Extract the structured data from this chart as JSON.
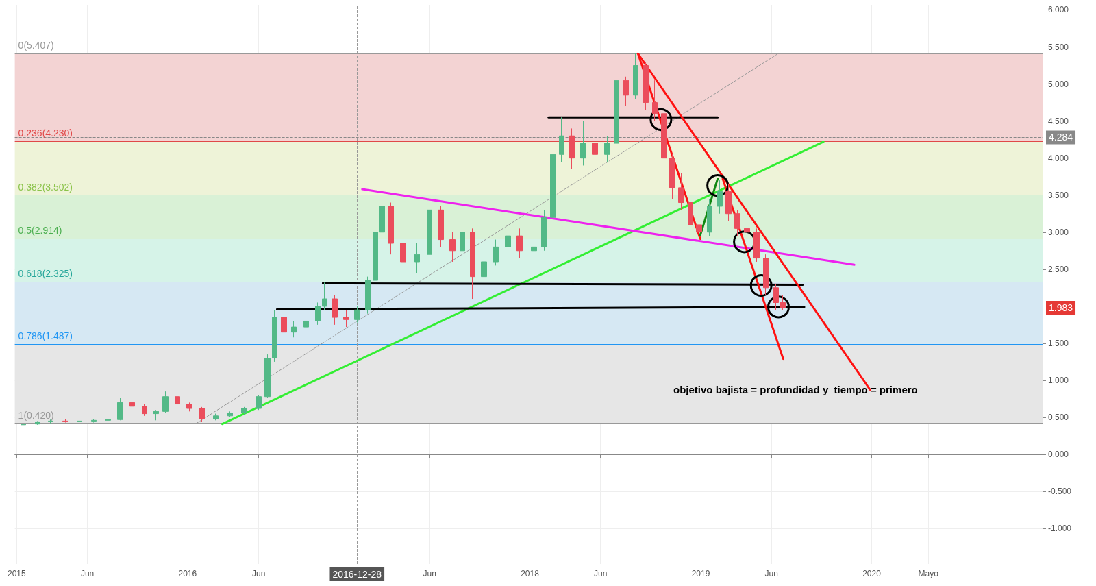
{
  "chart_data": {
    "type": "candlestick",
    "x": [
      "2015-01-15",
      "2015-02-15",
      "2015-03-15",
      "2015-04-15",
      "2015-05-15",
      "2015-06-15",
      "2015-07-15",
      "2015-08-10",
      "2015-09-05",
      "2015-10-01",
      "2015-10-25",
      "2015-11-15",
      "2015-12-10",
      "2016-01-05",
      "2016-02-01",
      "2016-03-01",
      "2016-04-01",
      "2016-05-01",
      "2016-06-01",
      "2016-06-20",
      "2016-07-05",
      "2016-07-25",
      "2016-08-15",
      "2016-09-10",
      "2016-10-05",
      "2016-10-20",
      "2016-11-10",
      "2016-12-05",
      "2016-12-28",
      "2017-01-20",
      "2017-02-05",
      "2017-02-20",
      "2017-03-10",
      "2017-04-05",
      "2017-05-05",
      "2017-06-01",
      "2017-06-25",
      "2017-07-20",
      "2017-08-10",
      "2017-09-01",
      "2017-09-25",
      "2017-10-20",
      "2017-11-15",
      "2017-12-10",
      "2018-01-10",
      "2018-02-01",
      "2018-02-20",
      "2018-03-10",
      "2018-04-01",
      "2018-04-25",
      "2018-05-20",
      "2018-06-15",
      "2018-07-05",
      "2018-07-25",
      "2018-08-15",
      "2018-09-05",
      "2018-09-25",
      "2018-10-15",
      "2018-11-01",
      "2018-11-20",
      "2018-12-10",
      "2018-12-28",
      "2019-01-20",
      "2019-02-10",
      "2019-03-01",
      "2019-03-20",
      "2019-04-10",
      "2019-04-30",
      "2019-05-20",
      "2019-06-10",
      "2019-06-25"
    ],
    "ohlc": [
      [
        0.4,
        0.43,
        0.38,
        0.41
      ],
      [
        0.41,
        0.45,
        0.4,
        0.44
      ],
      [
        0.44,
        0.47,
        0.42,
        0.45
      ],
      [
        0.45,
        0.48,
        0.43,
        0.44
      ],
      [
        0.44,
        0.47,
        0.42,
        0.45
      ],
      [
        0.45,
        0.48,
        0.43,
        0.46
      ],
      [
        0.46,
        0.5,
        0.44,
        0.47
      ],
      [
        0.47,
        0.76,
        0.46,
        0.7
      ],
      [
        0.7,
        0.74,
        0.6,
        0.65
      ],
      [
        0.65,
        0.68,
        0.52,
        0.55
      ],
      [
        0.55,
        0.6,
        0.46,
        0.58
      ],
      [
        0.58,
        0.85,
        0.56,
        0.78
      ],
      [
        0.78,
        0.8,
        0.66,
        0.68
      ],
      [
        0.68,
        0.7,
        0.58,
        0.62
      ],
      [
        0.62,
        0.64,
        0.44,
        0.48
      ],
      [
        0.48,
        0.55,
        0.46,
        0.52
      ],
      [
        0.52,
        0.58,
        0.5,
        0.56
      ],
      [
        0.56,
        0.64,
        0.54,
        0.62
      ],
      [
        0.62,
        0.8,
        0.6,
        0.78
      ],
      [
        0.78,
        1.35,
        0.76,
        1.3
      ],
      [
        1.3,
        1.95,
        1.25,
        1.85
      ],
      [
        1.85,
        1.9,
        1.55,
        1.65
      ],
      [
        1.65,
        1.8,
        1.58,
        1.72
      ],
      [
        1.72,
        1.85,
        1.65,
        1.8
      ],
      [
        1.8,
        2.05,
        1.75,
        2.0
      ],
      [
        2.0,
        2.32,
        1.95,
        2.1
      ],
      [
        2.1,
        2.15,
        1.75,
        1.85
      ],
      [
        1.85,
        1.95,
        1.72,
        1.82
      ],
      [
        1.82,
        2.0,
        1.78,
        1.95
      ],
      [
        1.95,
        2.4,
        1.9,
        2.35
      ],
      [
        2.35,
        3.1,
        2.3,
        3.0
      ],
      [
        3.0,
        3.55,
        2.95,
        3.35
      ],
      [
        3.35,
        3.4,
        2.7,
        2.85
      ],
      [
        2.85,
        3.0,
        2.45,
        2.6
      ],
      [
        2.6,
        2.85,
        2.45,
        2.7
      ],
      [
        2.7,
        3.42,
        2.65,
        3.3
      ],
      [
        3.3,
        3.35,
        2.8,
        2.9
      ],
      [
        2.9,
        3.0,
        2.6,
        2.75
      ],
      [
        2.75,
        3.1,
        2.7,
        3.0
      ],
      [
        3.0,
        3.05,
        2.1,
        2.4
      ],
      [
        2.4,
        2.7,
        2.35,
        2.6
      ],
      [
        2.6,
        2.9,
        2.55,
        2.8
      ],
      [
        2.8,
        3.1,
        2.7,
        2.95
      ],
      [
        2.95,
        3.05,
        2.65,
        2.75
      ],
      [
        2.75,
        2.9,
        2.65,
        2.8
      ],
      [
        2.8,
        3.3,
        2.75,
        3.2
      ],
      [
        3.2,
        4.2,
        3.15,
        4.05
      ],
      [
        4.05,
        4.55,
        3.95,
        4.3
      ],
      [
        4.3,
        4.4,
        3.85,
        4.0
      ],
      [
        4.0,
        4.5,
        3.9,
        4.2
      ],
      [
        4.2,
        4.35,
        3.85,
        4.05
      ],
      [
        4.05,
        4.3,
        3.95,
        4.2
      ],
      [
        4.2,
        5.25,
        4.15,
        5.05
      ],
      [
        5.05,
        5.1,
        4.7,
        4.85
      ],
      [
        4.85,
        5.42,
        4.8,
        5.25
      ],
      [
        5.25,
        5.3,
        4.65,
        4.75
      ],
      [
        4.75,
        5.05,
        4.5,
        4.6
      ],
      [
        4.6,
        4.65,
        3.9,
        4.0
      ],
      [
        4.0,
        4.05,
        3.45,
        3.6
      ],
      [
        3.6,
        3.8,
        3.3,
        3.4
      ],
      [
        3.4,
        3.45,
        2.95,
        3.1
      ],
      [
        3.1,
        3.2,
        2.85,
        3.0
      ],
      [
        3.0,
        3.45,
        2.95,
        3.35
      ],
      [
        3.35,
        3.7,
        3.25,
        3.55
      ],
      [
        3.55,
        3.65,
        3.15,
        3.25
      ],
      [
        3.25,
        3.3,
        2.95,
        3.05
      ],
      [
        3.05,
        3.2,
        2.85,
        3.0
      ],
      [
        3.0,
        3.05,
        2.6,
        2.65
      ],
      [
        2.65,
        2.7,
        2.15,
        2.25
      ],
      [
        2.25,
        2.3,
        1.95,
        2.05
      ],
      [
        2.05,
        2.15,
        1.95,
        1.98
      ]
    ],
    "series": [
      {
        "type": "line",
        "color": "#999999",
        "line_style": "dashed",
        "x": [
          "2016-01-20",
          "2019-06-15"
        ],
        "values": [
          0.42,
          5.41
        ]
      },
      {
        "type": "line",
        "color": "#33ee33",
        "line_style": "solid",
        "x": [
          "2016-03-15",
          "2019-09-20"
        ],
        "values": [
          0.41,
          4.22
        ]
      },
      {
        "type": "line",
        "color": "#ee22ee",
        "line_style": "solid",
        "x": [
          "2017-01-08",
          "2019-11-25"
        ],
        "values": [
          3.58,
          2.56
        ]
      },
      {
        "type": "line",
        "color": "#000000",
        "line_style": "solid",
        "x": [
          "2018-02-10",
          "2019-02-06"
        ],
        "values": [
          4.55,
          4.55
        ]
      },
      {
        "type": "line",
        "color": "#000000",
        "line_style": "solid",
        "x": [
          "2016-10-16",
          "2019-08-07"
        ],
        "values": [
          2.31,
          2.29
        ]
      },
      {
        "type": "line",
        "color": "#000000",
        "line_style": "solid",
        "x": [
          "2016-07-10",
          "2019-08-10"
        ],
        "values": [
          1.96,
          1.99
        ]
      },
      {
        "type": "line",
        "color": "#ff1111",
        "line_style": "solid",
        "x": [
          "2018-08-20",
          "2019-12-29"
        ],
        "values": [
          5.41,
          0.87
        ]
      },
      {
        "type": "line",
        "color": "#ff1111",
        "line_style": "solid",
        "x": [
          "2018-08-20",
          "2018-12-31"
        ],
        "values": [
          5.41,
          2.91
        ]
      },
      {
        "type": "line",
        "color": "#ff1111",
        "line_style": "solid",
        "x": [
          "2019-02-17",
          "2019-06-26"
        ],
        "values": [
          3.72,
          1.29
        ]
      },
      {
        "type": "line",
        "color": "#118811",
        "line_style": "solid",
        "x": [
          "2018-12-31",
          "2019-02-06"
        ],
        "values": [
          2.96,
          3.72
        ]
      },
      {
        "type": "scatter",
        "color": "#000000",
        "marker": "circle",
        "x": [
          "2018-10-08",
          "2019-02-06",
          "2019-04-04",
          "2019-05-10",
          "2019-06-16"
        ],
        "values": [
          4.52,
          3.63,
          2.87,
          2.28,
          1.99
        ]
      }
    ],
    "xlim": [
      "2014-12-28",
      "2020-12-31"
    ],
    "xticks": [
      {
        "value": "2015-01-01",
        "label": "2015"
      },
      {
        "value": "2015-06-01",
        "label": "Jun"
      },
      {
        "value": "2016-01-01",
        "label": "2016"
      },
      {
        "value": "2016-06-01",
        "label": "Jun"
      },
      {
        "value": "2017-06-01",
        "label": "Jun"
      },
      {
        "value": "2018-01-01",
        "label": "2018"
      },
      {
        "value": "2018-06-01",
        "label": "Jun"
      },
      {
        "value": "2019-01-01",
        "label": "2019"
      },
      {
        "value": "2019-06-01",
        "label": "Jun"
      },
      {
        "value": "2020-01-01",
        "label": "2020"
      },
      {
        "value": "2020-05-01",
        "label": "Mayo"
      }
    ],
    "ylim": [
      -1.48,
      6.06
    ],
    "yticks": [
      {
        "value": -1,
        "label": "-1.000"
      },
      {
        "value": -0.5,
        "label": "-0.500"
      },
      {
        "value": 0,
        "label": "0.000"
      },
      {
        "value": 0.5,
        "label": "0.500"
      },
      {
        "value": 1,
        "label": "1.000"
      },
      {
        "value": 1.5,
        "label": "1.500"
      },
      {
        "value": 2.5,
        "label": "2.500"
      },
      {
        "value": 3,
        "label": "3.000"
      },
      {
        "value": 3.5,
        "label": "3.500"
      },
      {
        "value": 4,
        "label": "4.000"
      },
      {
        "value": 4.5,
        "label": "4.500"
      },
      {
        "value": 5,
        "label": "5.000"
      },
      {
        "value": 5.5,
        "label": "5.500"
      },
      {
        "value": 6,
        "label": "6.000"
      }
    ],
    "grid": true,
    "ref_lines": [
      {
        "axis": "y",
        "value": 5.407,
        "label": "0(5.407)",
        "color": "#999999",
        "line_style": "solid"
      },
      {
        "axis": "y",
        "value": 4.23,
        "label": "0.236(4.230)",
        "color": "#e04848",
        "line_style": "solid"
      },
      {
        "axis": "y",
        "value": 3.502,
        "label": "0.382(3.502)",
        "color": "#8bc34a",
        "line_style": "solid"
      },
      {
        "axis": "y",
        "value": 2.914,
        "label": "0.5(2.914)",
        "color": "#4caf50",
        "line_style": "solid"
      },
      {
        "axis": "y",
        "value": 2.325,
        "label": "0.618(2.325)",
        "color": "#26a69a",
        "line_style": "solid"
      },
      {
        "axis": "y",
        "value": 1.487,
        "label": "0.786(1.487)",
        "color": "#2196f3",
        "line_style": "solid"
      },
      {
        "axis": "y",
        "value": 0.42,
        "label": "1(0.420)",
        "color": "#999999",
        "line_style": "solid"
      },
      {
        "axis": "y",
        "value": 4.284,
        "label": "4.284",
        "color": "#888888",
        "line_style": "dashed"
      },
      {
        "axis": "y",
        "value": 1.983,
        "label": "1.983",
        "color": "#e53935",
        "line_style": "dashed"
      },
      {
        "axis": "x",
        "value": "2016-12-28",
        "label": "2016-12-28",
        "color": "#999999",
        "line_style": "dashed"
      }
    ],
    "bands": [
      {
        "axis": "y",
        "from": 4.23,
        "to": 5.407,
        "color": "#f3d3d3"
      },
      {
        "axis": "y",
        "from": 3.502,
        "to": 4.23,
        "color": "#eef3d8"
      },
      {
        "axis": "y",
        "from": 2.914,
        "to": 3.502,
        "color": "#d9f1d6"
      },
      {
        "axis": "y",
        "from": 2.325,
        "to": 2.914,
        "color": "#d6f3e8"
      },
      {
        "axis": "y",
        "from": 1.487,
        "to": 2.325,
        "color": "#d6e8f3"
      },
      {
        "axis": "y",
        "from": 0.42,
        "to": 1.487,
        "color": "#e6e6e6"
      }
    ],
    "annotations": [
      "objetivo bajista = profundidad y  tiempo = primero"
    ]
  }
}
